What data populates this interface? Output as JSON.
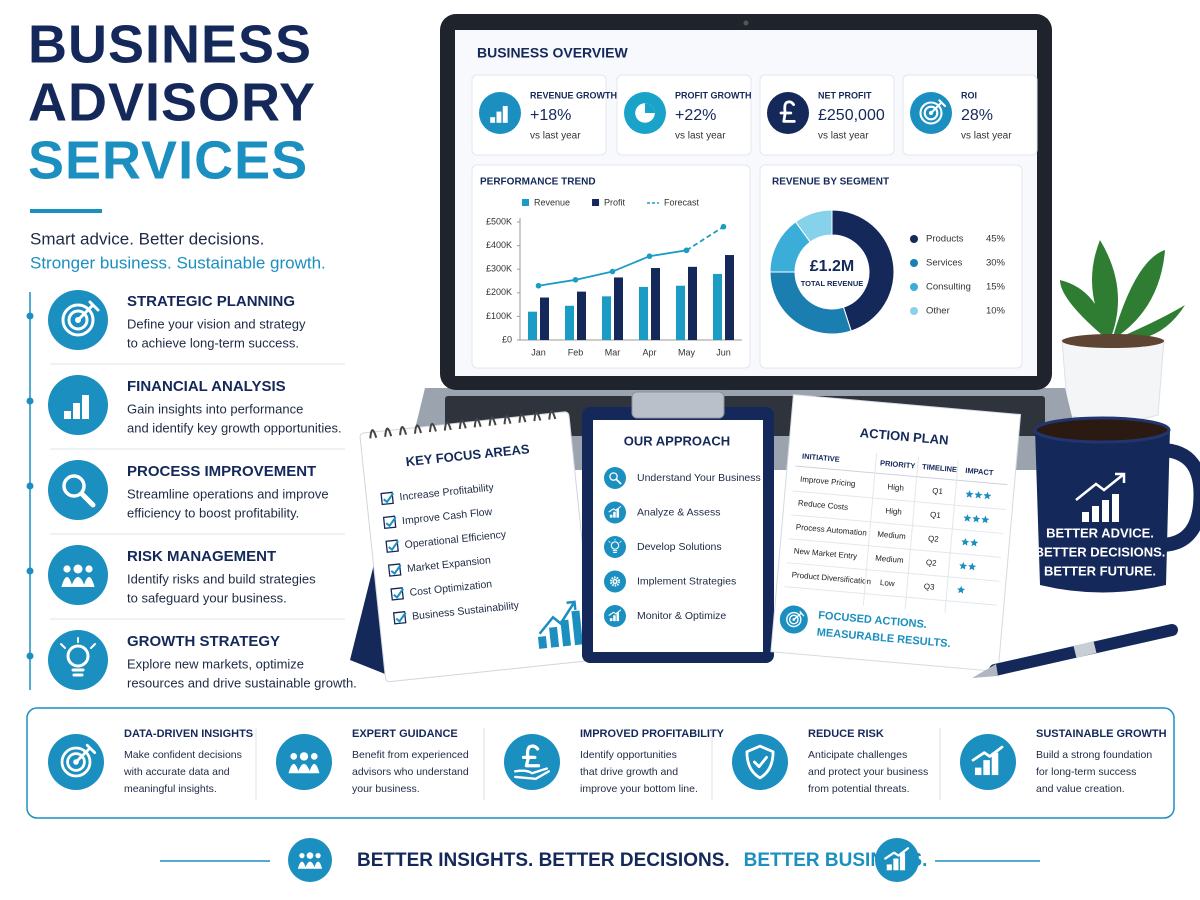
{
  "header": {
    "title": [
      "BUSINESS",
      "ADVISORY",
      "SERVICES"
    ],
    "tagline": [
      "Smart advice. Better decisions.",
      "Stronger business. Sustainable growth."
    ]
  },
  "services": [
    {
      "title": "STRATEGIC PLANNING",
      "lines": [
        "Define your vision and strategy",
        "to achieve long-term success."
      ]
    },
    {
      "title": "FINANCIAL ANALYSIS",
      "lines": [
        "Gain insights into performance",
        "and identify key growth opportunities."
      ]
    },
    {
      "title": "PROCESS IMPROVEMENT",
      "lines": [
        "Streamline operations and improve",
        "efficiency to boost profitability."
      ]
    },
    {
      "title": "RISK MANAGEMENT",
      "lines": [
        "Identify risks and build strategies",
        "to safeguard your business."
      ]
    },
    {
      "title": "GROWTH STRATEGY",
      "lines": [
        "Explore new markets, optimize",
        "resources and drive sustainable growth."
      ]
    }
  ],
  "dashboard": {
    "title": "BUSINESS OVERVIEW",
    "kpis": [
      {
        "label": "REVENUE GROWTH",
        "value": "+18%",
        "note": "vs last year"
      },
      {
        "label": "PROFIT GROWTH",
        "value": "+22%",
        "note": "vs last year"
      },
      {
        "label": "NET PROFIT",
        "value": "£250,000",
        "note": "vs last year"
      },
      {
        "label": "ROI",
        "value": "28%",
        "note": "vs last year"
      }
    ],
    "trend": {
      "type": "bar",
      "title": "PERFORMANCE TREND",
      "categories": [
        "Jan",
        "Feb",
        "Mar",
        "Apr",
        "May",
        "Jun"
      ],
      "series": [
        {
          "name": "Revenue",
          "type": "bar",
          "color": "#1b9cc4",
          "values": [
            120000,
            145000,
            185000,
            225000,
            230000,
            280000
          ]
        },
        {
          "name": "Profit",
          "type": "bar",
          "color": "#14285a",
          "values": [
            180000,
            205000,
            265000,
            305000,
            310000,
            360000
          ]
        },
        {
          "name": "Forecast",
          "type": "line",
          "dashed": true,
          "color": "#1b9cc4",
          "values": [
            null,
            null,
            null,
            null,
            380000,
            480000
          ]
        }
      ],
      "trend_line": {
        "color": "#1b9cc4",
        "values": [
          230000,
          255000,
          290000,
          355000,
          380000,
          null
        ]
      },
      "ylim": [
        0,
        500000
      ],
      "yticks": [
        {
          "value": 0,
          "label": "£0"
        },
        {
          "value": 100000,
          "label": "£100K"
        },
        {
          "value": 200000,
          "label": "£200K"
        },
        {
          "value": 300000,
          "label": "£300K"
        },
        {
          "value": 400000,
          "label": "£400K"
        },
        {
          "value": 500000,
          "label": "£500K"
        }
      ]
    },
    "segments": {
      "type": "pie",
      "title": "REVENUE BY SEGMENT",
      "center_value": "£1.2M",
      "center_label": "TOTAL REVENUE",
      "categories": [
        "Products",
        "Services",
        "Consulting",
        "Other"
      ],
      "values": [
        45,
        30,
        15,
        10
      ],
      "value_labels": [
        "45%",
        "30%",
        "15%",
        "10%"
      ],
      "colors": [
        "#14285a",
        "#1a7fb0",
        "#3aaed8",
        "#86d2ea"
      ]
    }
  },
  "focus": {
    "title": "KEY FOCUS AREAS",
    "items": [
      "Increase Profitability",
      "Improve Cash Flow",
      "Operational Efficiency",
      "Market Expansion",
      "Cost Optimization",
      "Business Sustainability"
    ]
  },
  "approach": {
    "title": "OUR APPROACH",
    "items": [
      "Understand Your Business",
      "Analyze & Assess",
      "Develop Solutions",
      "Implement Strategies",
      "Monitor & Optimize"
    ]
  },
  "action_plan": {
    "title": "ACTION PLAN",
    "columns": [
      "INITIATIVE",
      "PRIORITY",
      "TIMELINE",
      "IMPACT"
    ],
    "rows": [
      [
        "Improve Pricing",
        "High",
        "Q1"
      ],
      [
        "Reduce Costs",
        "High",
        "Q1"
      ],
      [
        "Process Automation",
        "Medium",
        "Q2"
      ],
      [
        "New Market Entry",
        "Medium",
        "Q2"
      ],
      [
        "Product Diversification",
        "Low",
        "Q3"
      ]
    ],
    "impact": [
      3,
      3,
      2,
      2,
      1
    ],
    "footer": [
      "FOCUSED ACTIONS.",
      "MEASURABLE RESULTS."
    ]
  },
  "mug": [
    "BETTER ADVICE.",
    "BETTER DECISIONS.",
    "BETTER FUTURE."
  ],
  "benefits": [
    {
      "title": "DATA-DRIVEN INSIGHTS",
      "lines": [
        "Make confident decisions",
        "with accurate data and",
        "meaningful insights."
      ]
    },
    {
      "title": "EXPERT GUIDANCE",
      "lines": [
        "Benefit from experienced",
        "advisors who understand",
        "your business."
      ]
    },
    {
      "title": "IMPROVED PROFITABILITY",
      "lines": [
        "Identify opportunities",
        "that drive growth and",
        "improve your bottom line."
      ]
    },
    {
      "title": "REDUCE RISK",
      "lines": [
        "Anticipate challenges",
        "and protect your business",
        "from potential threats."
      ]
    },
    {
      "title": "SUSTAINABLE GROWTH",
      "lines": [
        "Build a strong foundation",
        "for long-term success",
        "and value creation."
      ]
    }
  ],
  "footer": [
    "BETTER INSIGHTS. BETTER DECISIONS.",
    "BETTER BUSINESS."
  ]
}
